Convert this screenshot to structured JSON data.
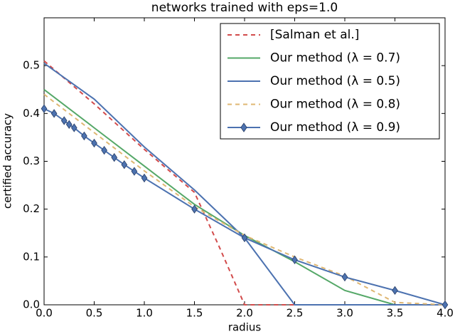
{
  "chart_data": {
    "type": "line",
    "title": "networks trained with eps=1.0",
    "x_label": "radius",
    "y_label": "certified accuracy",
    "xlim": [
      0,
      4.0
    ],
    "ylim": [
      0,
      0.6
    ],
    "xticks": [
      {
        "value": 0,
        "label": "0.0"
      },
      0.5,
      {
        "value": 1,
        "label": "1.0"
      },
      1.5,
      {
        "value": 2,
        "label": "2.0"
      },
      2.5,
      {
        "value": 3,
        "label": "3.0"
      },
      3.5,
      {
        "value": 4,
        "label": "4.0"
      }
    ],
    "yticks": [
      {
        "value": 0,
        "label": "0.0"
      },
      0.1,
      0.2,
      0.3,
      0.4,
      0.5
    ],
    "grid": false,
    "legend": "upper right",
    "series": [
      {
        "name": "[Salman et al.]",
        "color": "#d24b4b",
        "dashed": true,
        "x": [
          0,
          0.5,
          1.0,
          1.5,
          1.75,
          2.0,
          2.5,
          3.0,
          3.5,
          4.0
        ],
        "values": [
          0.51,
          0.42,
          0.325,
          0.235,
          0.12,
          0,
          0,
          0,
          0,
          0
        ]
      },
      {
        "name": "Our method (λ = 0.7)",
        "color": "#55a868",
        "dashed": false,
        "x": [
          0,
          0.5,
          1.0,
          1.5,
          2.0,
          2.5,
          3.0,
          3.5,
          4.0
        ],
        "values": [
          0.45,
          0.37,
          0.29,
          0.21,
          0.145,
          0.09,
          0.03,
          0,
          0
        ]
      },
      {
        "name": "Our method (λ = 0.5)",
        "color": "#4c72b0",
        "dashed": false,
        "x": [
          0,
          0.5,
          1.0,
          1.5,
          2.0,
          2.5,
          3.0,
          3.5,
          4.0
        ],
        "values": [
          0.505,
          0.43,
          0.33,
          0.24,
          0.14,
          0,
          0,
          0,
          0
        ]
      },
      {
        "name": "Our method (λ = 0.8)",
        "color": "#dfb773",
        "dashed": true,
        "x": [
          0,
          0.5,
          1.0,
          1.5,
          2.0,
          2.5,
          3.0,
          3.5,
          4.0
        ],
        "values": [
          0.44,
          0.36,
          0.28,
          0.205,
          0.145,
          0.1,
          0.06,
          0.005,
          0
        ]
      },
      {
        "name": "Our method (λ = 0.9)",
        "color": "#4c72b0",
        "dashed": false,
        "marker": "diamond",
        "x": [
          0,
          0.1,
          0.2,
          0.25,
          0.3,
          0.4,
          0.5,
          0.6,
          0.7,
          0.8,
          0.9,
          1.0,
          1.5,
          2.0,
          2.5,
          3.0,
          3.5,
          4.0
        ],
        "values": [
          0.41,
          0.4,
          0.385,
          0.377,
          0.37,
          0.353,
          0.338,
          0.323,
          0.308,
          0.293,
          0.279,
          0.265,
          0.2,
          0.14,
          0.094,
          0.058,
          0.03,
          0
        ]
      }
    ]
  }
}
